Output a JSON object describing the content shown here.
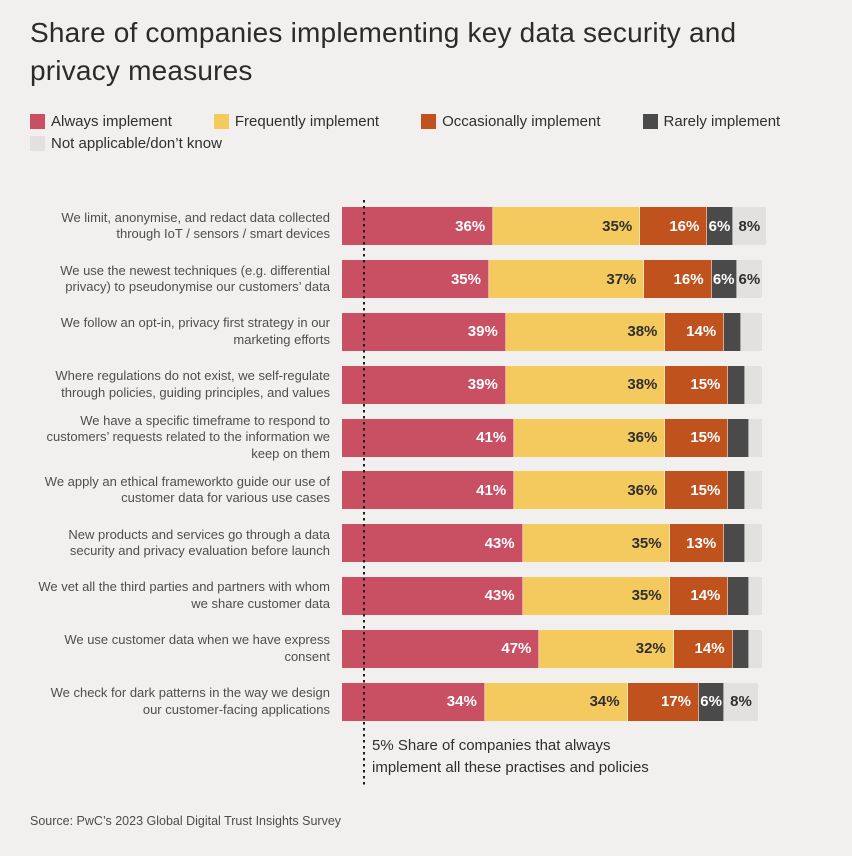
{
  "title": "Share of companies implementing key data security and\nprivacy measures",
  "legend": [
    {
      "label": "Always implement",
      "color": "#c94f63"
    },
    {
      "label": "Frequently implement",
      "color": "#f4c95e"
    },
    {
      "label": "Occasionally implement",
      "color": "#c0521e"
    },
    {
      "label": "Rarely implement",
      "color": "#4a4a4a"
    },
    {
      "label": "Not applicable/don’t know",
      "color": "#e2e1df"
    }
  ],
  "chart_data": {
    "type": "bar",
    "orientation": "horizontal",
    "stacked": true,
    "value_unit": "%",
    "axis_range": [
      0,
      101
    ],
    "grid": false,
    "legend_position": "top",
    "series_names": [
      "Always implement",
      "Frequently implement",
      "Occasionally implement",
      "Rarely implement",
      "Not applicable/don’t know"
    ],
    "series_colors": [
      "#c94f63",
      "#f4c95e",
      "#c0521e",
      "#4a4a4a",
      "#e2e1df"
    ],
    "series_label_text_colors": [
      "#ffffff",
      "#2f2f2f",
      "#ffffff",
      "#ffffff",
      "#2f2f2f"
    ],
    "rows": [
      {
        "category": "We limit, anonymise, and redact data collected through IoT / sensors / smart devices",
        "values": [
          36,
          35,
          16,
          6,
          8
        ],
        "value_labels": [
          "36%",
          "35%",
          "16%",
          "6%",
          "8%"
        ]
      },
      {
        "category": "We use the newest techniques (e.g. differential privacy) to pseudonymise our customers’ data",
        "values": [
          35,
          37,
          16,
          6,
          6
        ],
        "value_labels": [
          "35%",
          "37%",
          "16%",
          "6%",
          "6%"
        ]
      },
      {
        "category": "We follow an opt-in, privacy first strategy in our marketing efforts",
        "values": [
          39,
          38,
          14,
          4,
          5
        ],
        "value_labels": [
          "39%",
          "38%",
          "14%",
          "",
          ""
        ]
      },
      {
        "category": "Where regulations do not exist, we self-regulate through policies, guiding principles, and values",
        "values": [
          39,
          38,
          15,
          4,
          4
        ],
        "value_labels": [
          "39%",
          "38%",
          "15%",
          "",
          ""
        ]
      },
      {
        "category": "We have a specific timeframe to respond to customers’ requests related to the information we keep on them",
        "values": [
          41,
          36,
          15,
          5,
          3
        ],
        "value_labels": [
          "41%",
          "36%",
          "15%",
          "",
          ""
        ]
      },
      {
        "category": "We apply an ethical frameworkto guide our use of customer data for various use cases",
        "values": [
          41,
          36,
          15,
          4,
          4
        ],
        "value_labels": [
          "41%",
          "36%",
          "15%",
          "",
          ""
        ]
      },
      {
        "category": "New products and services go through a data security and privacy evaluation before launch",
        "values": [
          43,
          35,
          13,
          5,
          4
        ],
        "value_labels": [
          "43%",
          "35%",
          "13%",
          "",
          ""
        ]
      },
      {
        "category": "We vet all the third parties and partners with whom we share customer data",
        "values": [
          43,
          35,
          14,
          5,
          3
        ],
        "value_labels": [
          "43%",
          "35%",
          "14%",
          "",
          ""
        ]
      },
      {
        "category": "We use customer data when we have express consent",
        "values": [
          47,
          32,
          14,
          4,
          3
        ],
        "value_labels": [
          "47%",
          "32%",
          "14%",
          "",
          ""
        ]
      },
      {
        "category": "We check for dark patterns in the way we design our customer-facing applications",
        "values": [
          34,
          34,
          17,
          6,
          8
        ],
        "value_labels": [
          "34%",
          "34%",
          "17%",
          "6%",
          "8%"
        ]
      }
    ],
    "reference_line": {
      "value": 5,
      "label": "5% Share of companies that always implement all these practises and policies"
    }
  },
  "annotation": "5% Share of companies that always\nimplement all these practises and policies",
  "source": "Source: PwC’s 2023 Global Digital Trust Insights Survey"
}
